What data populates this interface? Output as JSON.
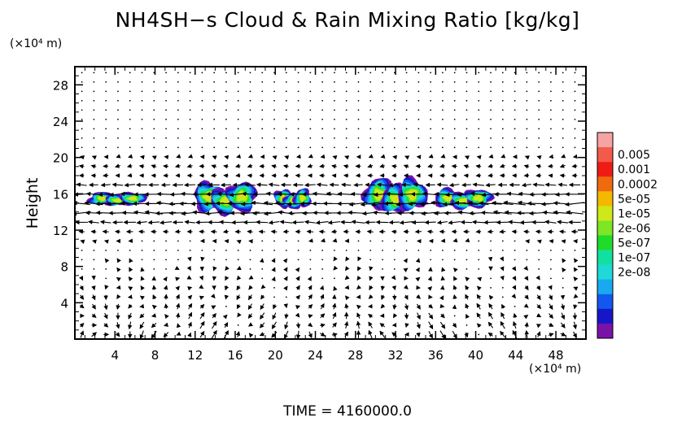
{
  "chart_data": {
    "type": "contour_vector",
    "title": "NH4SH−s Cloud & Rain Mixing Ratio [kg/kg]",
    "ylabel": "Height",
    "x_unit": "(×10⁴ m)",
    "y_unit": "(×10⁴ m)",
    "xlim": [
      0,
      51
    ],
    "ylim": [
      0,
      30
    ],
    "x_ticks": [
      4,
      8,
      12,
      16,
      20,
      24,
      28,
      32,
      36,
      40,
      44,
      48
    ],
    "y_ticks": [
      4,
      8,
      12,
      16,
      20,
      24,
      28
    ],
    "colorbar": {
      "labels": [
        "0.005",
        "0.001",
        "0.0002",
        "5e-05",
        "1e-05",
        "2e-06",
        "5e-07",
        "1e-07",
        "2e-08"
      ],
      "colors": [
        "#f5a3a3",
        "#f25a4a",
        "#ee1c14",
        "#f06a10",
        "#f5b800",
        "#cfe81a",
        "#7ee624",
        "#1fdb2a",
        "#12e0a0",
        "#1fd8d8",
        "#19a9ee",
        "#1258ee",
        "#1616c8",
        "#7a12a8"
      ]
    },
    "clouds": [
      {
        "x": [
          1.5,
          7.0
        ],
        "y": [
          14.6,
          16.2
        ]
      },
      {
        "x": [
          12.0,
          18.0
        ],
        "y": [
          13.6,
          17.4
        ]
      },
      {
        "x": [
          20.0,
          23.5
        ],
        "y": [
          14.2,
          16.6
        ]
      },
      {
        "x": [
          29.0,
          35.0
        ],
        "y": [
          13.6,
          17.8
        ]
      },
      {
        "x": [
          36.0,
          41.5
        ],
        "y": [
          14.2,
          16.6
        ]
      }
    ],
    "vector_field": "zonal jet at 12–18 (×10⁴ m) directed toward −x; weak circulation elsewhere"
  },
  "time_label": "TIME  =  4160000.0"
}
